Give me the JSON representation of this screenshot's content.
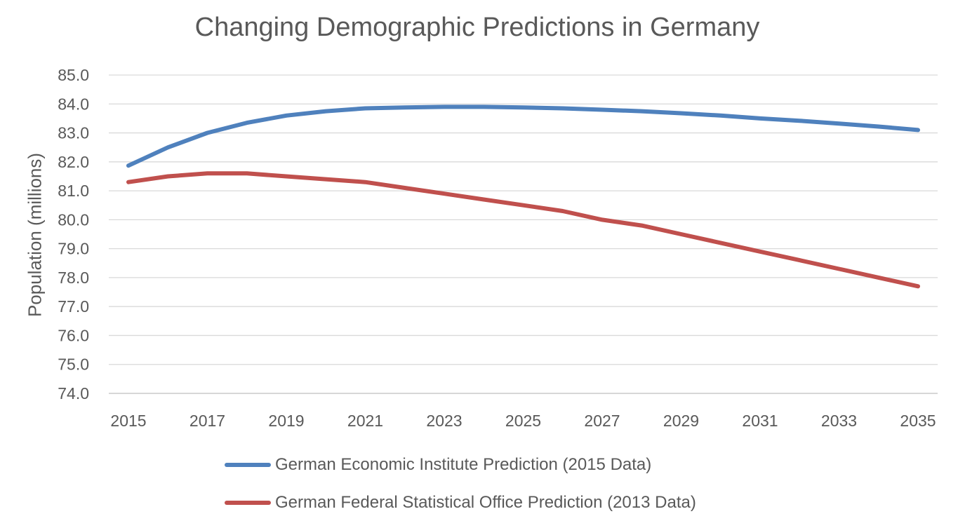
{
  "chart_data": {
    "type": "line",
    "title": "Changing Demographic Predictions in Germany",
    "xlabel": "",
    "ylabel": "Population (millions)",
    "ylim": [
      74.0,
      85.0
    ],
    "y_ticks": [
      "74.0",
      "75.0",
      "76.0",
      "77.0",
      "78.0",
      "79.0",
      "80.0",
      "81.0",
      "82.0",
      "83.0",
      "84.0",
      "85.0"
    ],
    "x": [
      2015,
      2016,
      2017,
      2018,
      2019,
      2020,
      2021,
      2022,
      2023,
      2024,
      2025,
      2026,
      2027,
      2028,
      2029,
      2030,
      2031,
      2032,
      2033,
      2034,
      2035
    ],
    "x_ticks": [
      "2015",
      "2017",
      "2019",
      "2021",
      "2023",
      "2025",
      "2027",
      "2029",
      "2031",
      "2033",
      "2035"
    ],
    "grid": true,
    "legend_position": "bottom",
    "series": [
      {
        "name": "German Economic Institute Prediction (2015 Data)",
        "color": "#4F81BD",
        "values": [
          81.87,
          82.5,
          83.0,
          83.35,
          83.6,
          83.75,
          83.85,
          83.88,
          83.9,
          83.9,
          83.88,
          83.85,
          83.8,
          83.75,
          83.68,
          83.6,
          83.5,
          83.42,
          83.32,
          83.22,
          83.1
        ]
      },
      {
        "name": "German Federal Statistical Office Prediction (2013 Data)",
        "color": "#C0504D",
        "values": [
          81.3,
          81.5,
          81.6,
          81.6,
          81.5,
          81.4,
          81.3,
          81.1,
          80.9,
          80.7,
          80.5,
          80.3,
          80.0,
          79.8,
          79.5,
          79.2,
          78.9,
          78.6,
          78.3,
          78.0,
          77.7
        ]
      }
    ]
  }
}
